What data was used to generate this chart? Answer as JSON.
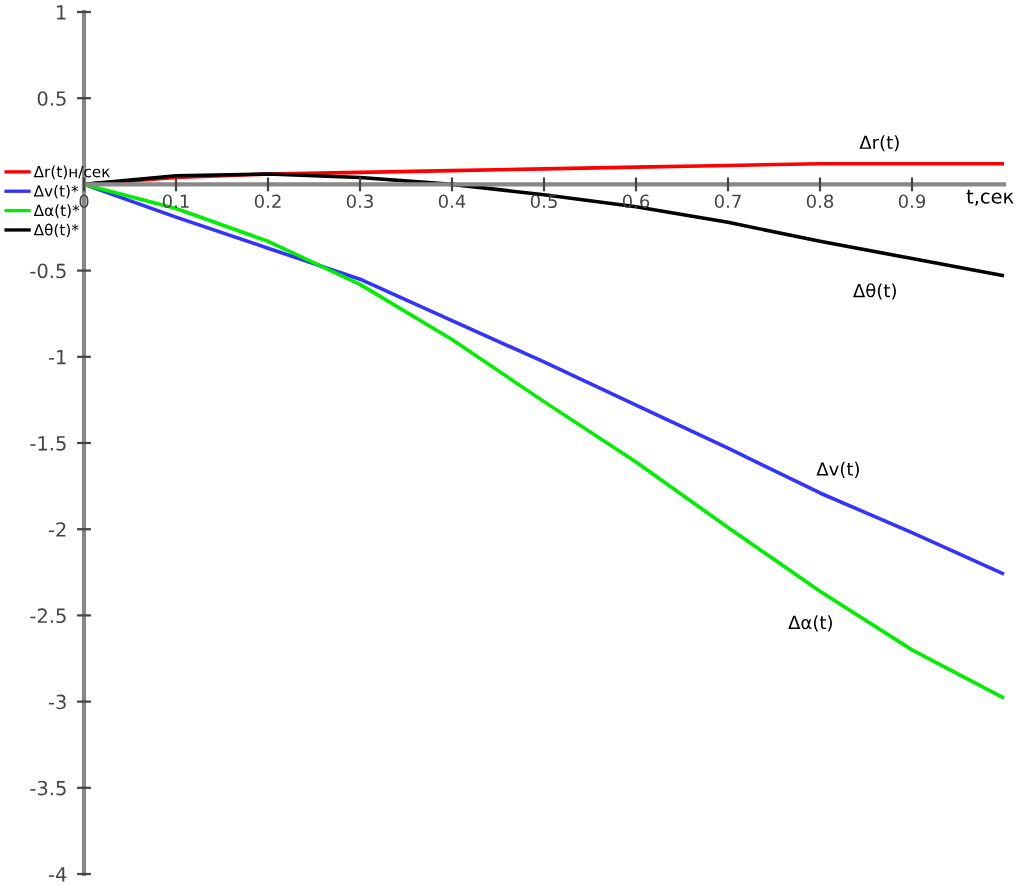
{
  "chart_data": {
    "type": "line",
    "xlabel": "t,сек",
    "x": [
      0,
      0.1,
      0.2,
      0.3,
      0.4,
      0.5,
      0.6,
      0.7,
      0.8,
      0.9,
      1.0
    ],
    "series": [
      {
        "name": "Δr(t)н/сек",
        "color": "#ff0000",
        "values": [
          0,
          0.04,
          0.06,
          0.07,
          0.08,
          0.09,
          0.1,
          0.11,
          0.12,
          0.12,
          0.12
        ]
      },
      {
        "name": "Δv(t)*",
        "color": "#3333ff",
        "values": [
          0,
          -0.19,
          -0.37,
          -0.55,
          -0.79,
          -1.03,
          -1.28,
          -1.53,
          -1.79,
          -2.02,
          -2.26
        ]
      },
      {
        "name": "Δα(t)*",
        "color": "#00ee00",
        "values": [
          0,
          -0.14,
          -0.33,
          -0.58,
          -0.9,
          -1.26,
          -1.61,
          -1.99,
          -2.36,
          -2.7,
          -2.98
        ]
      },
      {
        "name": "Δθ(t)*",
        "color": "#000000",
        "values": [
          0,
          0.05,
          0.06,
          0.04,
          0.0,
          -0.06,
          -0.13,
          -0.22,
          -0.33,
          -0.43,
          -0.53
        ]
      }
    ],
    "annotations": [
      "Δr(t)",
      "Δθ(t)",
      "Δv(t)",
      "Δα(t)"
    ],
    "xlim": [
      0,
      1
    ],
    "ylim": [
      -4,
      1
    ],
    "xticks": [
      0,
      0.1,
      0.2,
      0.3,
      0.4,
      0.5,
      0.6,
      0.7,
      0.8,
      0.9
    ],
    "yticks": [
      -4,
      -3.5,
      -3,
      -2.5,
      -2,
      -1.5,
      -1,
      -0.5,
      0.5,
      1
    ],
    "legend": "left",
    "grid": false
  }
}
